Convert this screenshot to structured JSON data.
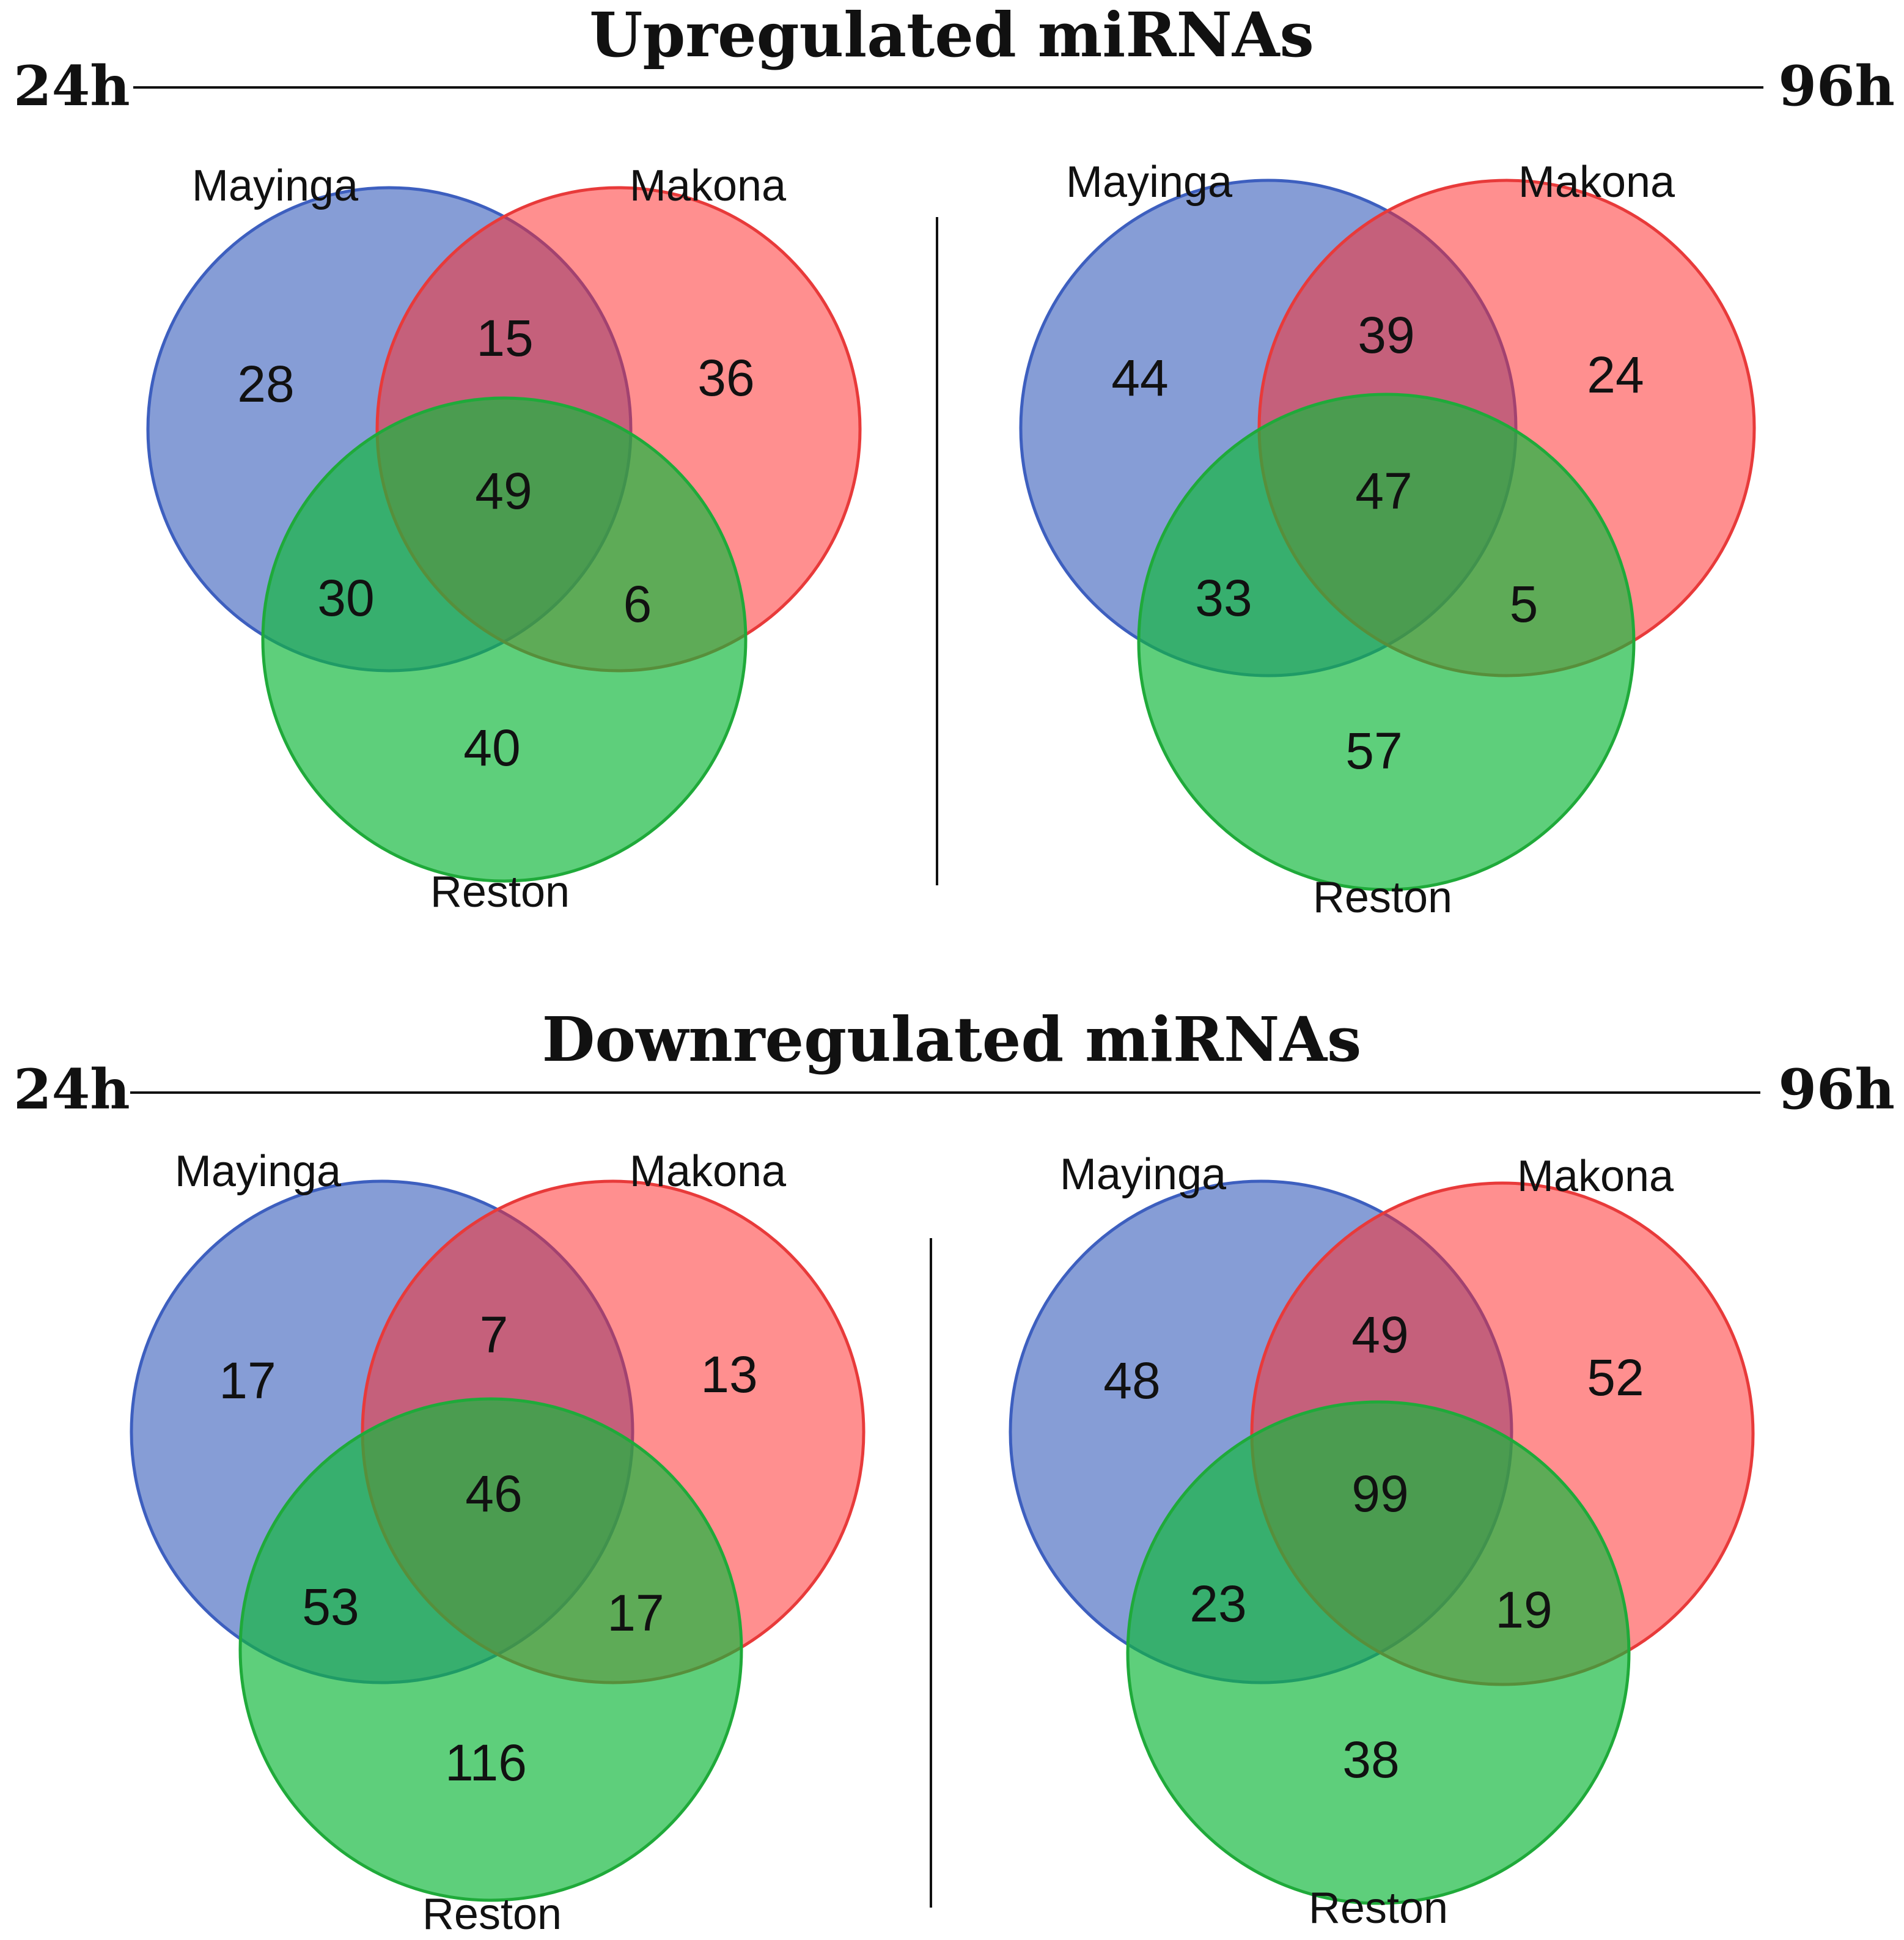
{
  "colors": {
    "mayinga": "#2e56b8",
    "makona": "#ff2828",
    "reston": "#12b83c",
    "mayinga_stroke": "#3d5fbf",
    "makona_stroke": "#e83a3a",
    "reston_stroke": "#1faa3a",
    "line": "#111111"
  },
  "sections": [
    {
      "title": "Upregulated miRNAs",
      "left_time": "24h",
      "right_time": "96h",
      "diagrams": [
        {
          "time": "24h",
          "sets": {
            "a": "Mayinga",
            "b": "Makona",
            "c": "Reston"
          },
          "counts": {
            "a_only": "28",
            "ab": "15",
            "b_only": "36",
            "abc": "49",
            "ac": "30",
            "bc": "6",
            "c_only": "40"
          }
        },
        {
          "time": "96h",
          "sets": {
            "a": "Mayinga",
            "b": "Makona",
            "c": "Reston"
          },
          "counts": {
            "a_only": "44",
            "ab": "39",
            "b_only": "24",
            "abc": "47",
            "ac": "33",
            "bc": "5",
            "c_only": "57"
          }
        }
      ]
    },
    {
      "title": "Downregulated miRNAs",
      "left_time": "24h",
      "right_time": "96h",
      "diagrams": [
        {
          "time": "24h",
          "sets": {
            "a": "Mayinga",
            "b": "Makona",
            "c": "Reston"
          },
          "counts": {
            "a_only": "17",
            "ab": "7",
            "b_only": "13",
            "abc": "46",
            "ac": "53",
            "bc": "17",
            "c_only": "116"
          }
        },
        {
          "time": "96h",
          "sets": {
            "a": "Mayinga",
            "b": "Makona",
            "c": "Reston"
          },
          "counts": {
            "a_only": "48",
            "ab": "49",
            "b_only": "52",
            "abc": "99",
            "ac": "23",
            "bc": "19",
            "c_only": "38"
          }
        }
      ]
    }
  ]
}
